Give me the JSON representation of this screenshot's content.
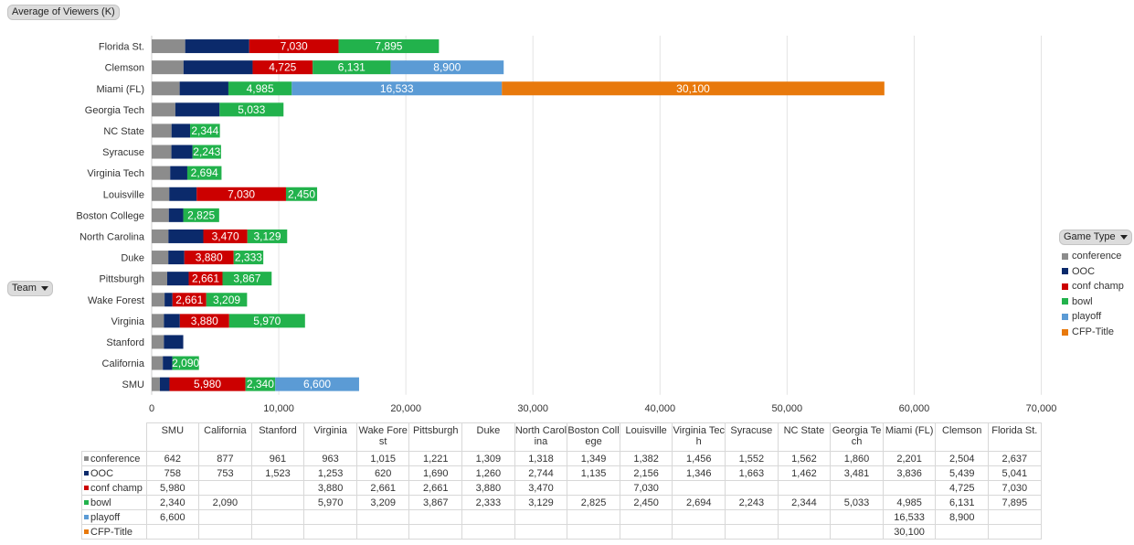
{
  "controls": {
    "measure_label": "Average of Viewers (K)",
    "row_field_label": "Team",
    "column_field_label": "Game Type"
  },
  "colors": {
    "conference": "#8c8c8c",
    "OOC": "#0b2a6b",
    "conf champ": "#cc0000",
    "bowl": "#22b24c",
    "playoff": "#5b9bd5",
    "CFP-Title": "#e8790c"
  },
  "chart_data": {
    "type": "bar",
    "orientation": "horizontal",
    "stacked": true,
    "title": "",
    "xlabel": "",
    "ylabel": "",
    "xlim": [
      0,
      70000
    ],
    "x_ticks": [
      "0",
      "10,000",
      "20,000",
      "30,000",
      "40,000",
      "50,000",
      "60,000",
      "70,000"
    ],
    "grid": true,
    "legend_position": "right",
    "categories": [
      "Florida St.",
      "Clemson",
      "Miami (FL)",
      "Georgia Tech",
      "NC State",
      "Syracuse",
      "Virginia Tech",
      "Louisville",
      "Boston College",
      "North Carolina",
      "Duke",
      "Pittsburgh",
      "Wake Forest",
      "Virginia",
      "Stanford",
      "California",
      "SMU"
    ],
    "series": [
      {
        "name": "conference",
        "values": [
          2637,
          2504,
          2201,
          1860,
          1562,
          1552,
          1456,
          1382,
          1349,
          1318,
          1309,
          1221,
          1015,
          963,
          961,
          877,
          642
        ]
      },
      {
        "name": "OOC",
        "values": [
          5041,
          5439,
          3836,
          3481,
          1462,
          1663,
          1346,
          2156,
          1135,
          2744,
          1260,
          1690,
          620,
          1253,
          1523,
          753,
          758
        ]
      },
      {
        "name": "conf champ",
        "values": [
          7030,
          4725,
          null,
          null,
          null,
          null,
          null,
          7030,
          null,
          3470,
          3880,
          2661,
          2661,
          3880,
          null,
          null,
          5980
        ]
      },
      {
        "name": "bowl",
        "values": [
          7895,
          6131,
          4985,
          5033,
          2344,
          2243,
          2694,
          2450,
          2825,
          3129,
          2333,
          3867,
          3209,
          5970,
          null,
          2090,
          2340
        ]
      },
      {
        "name": "playoff",
        "values": [
          null,
          8900,
          16533,
          null,
          null,
          null,
          null,
          null,
          null,
          null,
          null,
          null,
          null,
          null,
          null,
          null,
          6600
        ]
      },
      {
        "name": "CFP-Title",
        "values": [
          null,
          null,
          30100,
          null,
          null,
          null,
          null,
          null,
          null,
          null,
          null,
          null,
          null,
          null,
          null,
          null,
          null
        ]
      }
    ],
    "labeled_series": [
      "conf champ",
      "bowl",
      "playoff",
      "CFP-Title"
    ]
  },
  "table": {
    "columns": [
      "SMU",
      "California",
      "Stanford",
      "Virginia",
      "Wake Forest",
      "Pittsburgh",
      "Duke",
      "North Carolina",
      "Boston College",
      "Louisville",
      "Virginia Tech",
      "Syracuse",
      "NC State",
      "Georgia Tech",
      "Miami (FL)",
      "Clemson",
      "Florida St."
    ],
    "rows": [
      {
        "label": "conference",
        "cells": [
          "642",
          "877",
          "961",
          "963",
          "1,015",
          "1,221",
          "1,309",
          "1,318",
          "1,349",
          "1,382",
          "1,456",
          "1,552",
          "1,562",
          "1,860",
          "2,201",
          "2,504",
          "2,637"
        ]
      },
      {
        "label": "OOC",
        "cells": [
          "758",
          "753",
          "1,523",
          "1,253",
          "620",
          "1,690",
          "1,260",
          "2,744",
          "1,135",
          "2,156",
          "1,346",
          "1,663",
          "1,462",
          "3,481",
          "3,836",
          "5,439",
          "5,041"
        ]
      },
      {
        "label": "conf champ",
        "cells": [
          "5,980",
          "",
          "",
          "3,880",
          "2,661",
          "2,661",
          "3,880",
          "3,470",
          "",
          "7,030",
          "",
          "",
          "",
          "",
          "",
          "4,725",
          "7,030"
        ]
      },
      {
        "label": "bowl",
        "cells": [
          "2,340",
          "2,090",
          "",
          "5,970",
          "3,209",
          "3,867",
          "2,333",
          "3,129",
          "2,825",
          "2,450",
          "2,694",
          "2,243",
          "2,344",
          "5,033",
          "4,985",
          "6,131",
          "7,895"
        ]
      },
      {
        "label": "playoff",
        "cells": [
          "6,600",
          "",
          "",
          "",
          "",
          "",
          "",
          "",
          "",
          "",
          "",
          "",
          "",
          "",
          "16,533",
          "8,900",
          ""
        ]
      },
      {
        "label": "CFP-Title",
        "cells": [
          "",
          "",
          "",
          "",
          "",
          "",
          "",
          "",
          "",
          "",
          "",
          "",
          "",
          "",
          "30,100",
          "",
          ""
        ]
      }
    ]
  }
}
